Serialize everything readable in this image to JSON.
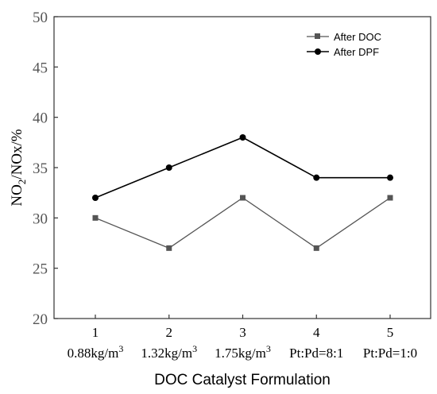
{
  "chart_data": {
    "type": "line",
    "title": "",
    "xlabel": "DOC Catalyst Formulation",
    "ylabel_main": "NO",
    "ylabel_sub": "2",
    "ylabel_rest": "/NOx/%",
    "ylim": [
      20,
      50
    ],
    "yticks": [
      "20",
      "25",
      "30",
      "35",
      "40",
      "45",
      "50"
    ],
    "x": [
      1,
      2,
      3,
      4,
      5
    ],
    "categories": [
      "1",
      "2",
      "3",
      "4",
      "5"
    ],
    "category_details": [
      "0.88kg/m",
      "1.32kg/m",
      "1.75kg/m",
      "Pt:Pd=8:1",
      "Pt:Pd=1:0"
    ],
    "category_superscripts": [
      "3",
      "3",
      "3",
      "",
      ""
    ],
    "grid": false,
    "legend_position": "top-right",
    "series": [
      {
        "name": "After DOC",
        "marker": "square",
        "color": "#555555",
        "values": [
          30,
          27,
          32,
          27,
          32
        ]
      },
      {
        "name": "After DPF",
        "marker": "circle",
        "color": "#000000",
        "values": [
          32,
          35,
          38,
          34,
          34
        ]
      }
    ]
  }
}
